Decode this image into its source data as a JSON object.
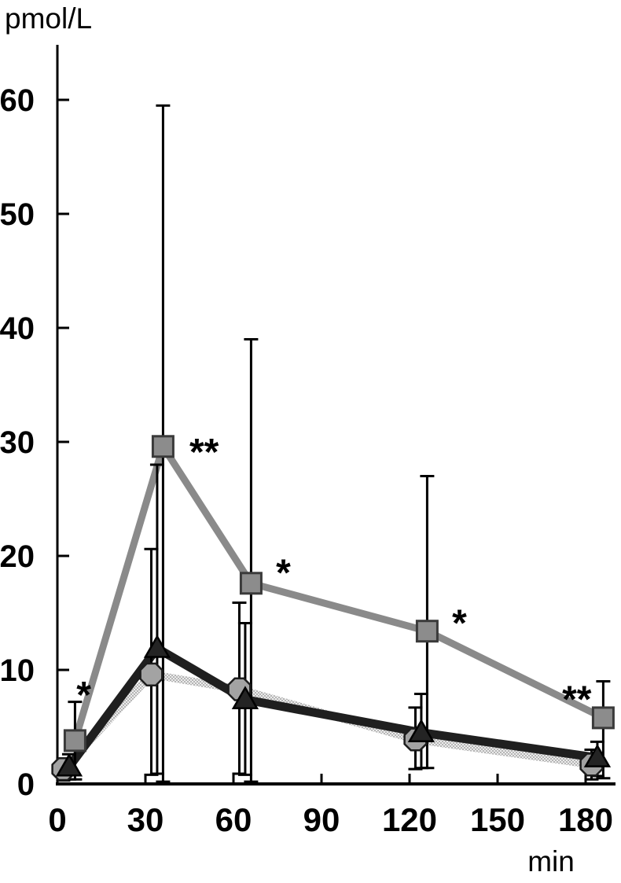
{
  "chart_data": {
    "type": "line",
    "title": "",
    "ylabel": "pmol/L",
    "xlabel": "min",
    "xlim": [
      0,
      190
    ],
    "ylim": [
      0,
      65
    ],
    "x_ticks": [
      0,
      30,
      60,
      90,
      120,
      150,
      180
    ],
    "y_ticks": [
      0,
      10,
      20,
      30,
      40,
      50,
      60
    ],
    "grid": false,
    "legend": "none",
    "x": [
      0,
      30,
      60,
      120,
      180
    ],
    "series": [
      {
        "name": "square-series",
        "marker": "square",
        "line_style": "solid",
        "line_color": "#8a8a8a",
        "marker_fill": "#8c8c8c",
        "marker_stroke": "#3a3a3a",
        "x_offset_min": 6,
        "values": [
          3.8,
          29.6,
          17.6,
          13.4,
          5.8
        ],
        "err_low": [
          0.4,
          0.2,
          0.2,
          1.4,
          0.5
        ],
        "err_high": [
          7.2,
          59.5,
          39.0,
          27.0,
          9.0
        ]
      },
      {
        "name": "triangle-series",
        "marker": "triangle",
        "line_style": "solid",
        "line_color": "#1f1f1f",
        "marker_fill": "#242424",
        "marker_stroke": "#000000",
        "x_offset_min": 4,
        "values": [
          1.5,
          11.9,
          7.4,
          4.5,
          2.3
        ],
        "err_low": [
          0.4,
          0.9,
          0.8,
          1.4,
          0.7
        ],
        "err_high": [
          2.6,
          28.0,
          14.1,
          7.9,
          3.7
        ]
      },
      {
        "name": "circle-series",
        "marker": "circle",
        "line_style": "stippled",
        "line_color": "#c9c9c9",
        "marker_fill": "#a3a3a3",
        "marker_stroke": "#1c1c1c",
        "x_offset_min": 2,
        "values": [
          1.3,
          9.6,
          8.3,
          3.9,
          1.7
        ],
        "err_low": [
          0.3,
          0.8,
          0.9,
          1.3,
          0.4
        ],
        "err_high": [
          2.2,
          20.6,
          15.9,
          6.7,
          3.0
        ]
      }
    ],
    "annotations": [
      {
        "text": "*",
        "x": 9,
        "y": 6.7
      },
      {
        "text": "**",
        "x": 50,
        "y": 28.0
      },
      {
        "text": "*",
        "x": 77,
        "y": 17.4
      },
      {
        "text": "*",
        "x": 137,
        "y": 13.0
      },
      {
        "text": "**",
        "x": 177,
        "y": 6.3
      }
    ]
  }
}
